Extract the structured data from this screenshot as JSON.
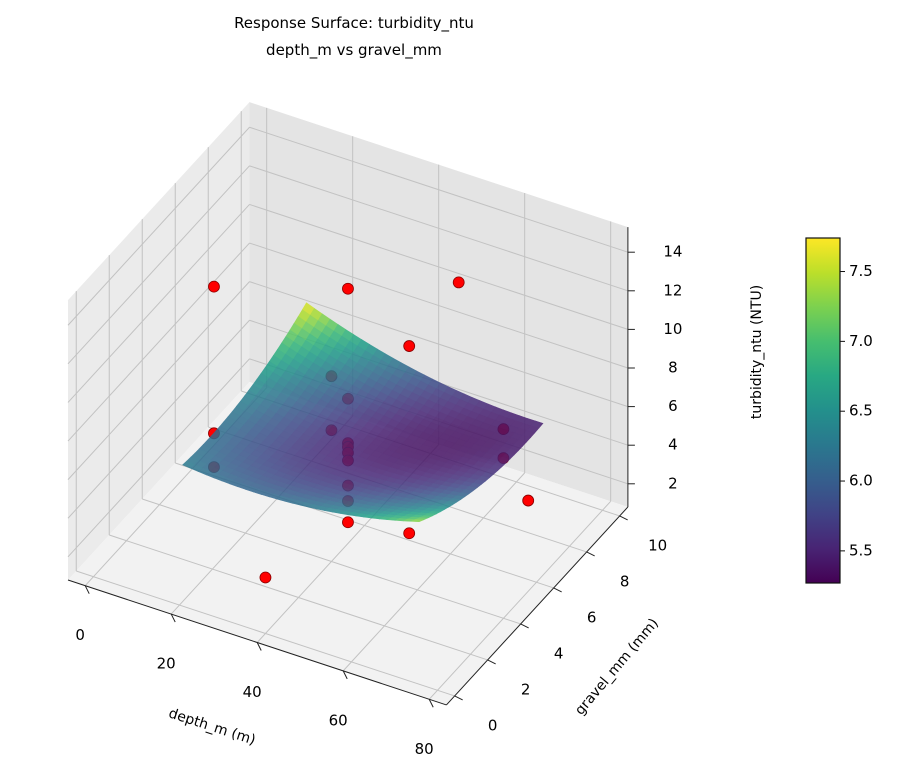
{
  "chart_data": {
    "type": "surface3d",
    "title": "Response Surface: turbidity_ntu",
    "subtitle": "depth_m vs gravel_mm",
    "xlabel": "depth_m (m)",
    "ylabel": "gravel_mm (mm)",
    "zlabel": "turbidity_ntu (NTU)",
    "colorbar_label": "turbidity_ntu (NTU)",
    "colormap": "viridis",
    "xlim": [
      -4,
      84
    ],
    "ylim": [
      -0.5,
      10.5
    ],
    "zlim": [
      0.8,
      15.3
    ],
    "xticks": [
      0,
      20,
      40,
      60,
      80
    ],
    "yticks": [
      0,
      2,
      4,
      6,
      8,
      10
    ],
    "zticks": [
      2,
      4,
      6,
      8,
      10,
      12,
      14
    ],
    "colorbar_range": [
      5.27,
      7.74
    ],
    "colorbar_ticks": [
      "5.5",
      "6.0",
      "6.5",
      "7.0",
      "7.5"
    ],
    "surface_range": {
      "x": [
        15,
        70
      ],
      "y": [
        1.5,
        9
      ]
    },
    "surface_model": "quadratic fit",
    "points_color": "#ff0000",
    "points": [
      {
        "x": 40,
        "y": 5,
        "z": 14.0
      },
      {
        "x": 40,
        "y": 5,
        "z": 8.3
      },
      {
        "x": 40,
        "y": 5,
        "z": 6.0
      },
      {
        "x": 40,
        "y": 5,
        "z": 5.8
      },
      {
        "x": 40,
        "y": 5,
        "z": 5.5
      },
      {
        "x": 40,
        "y": 5,
        "z": 5.1
      },
      {
        "x": 40,
        "y": 5,
        "z": 3.8
      },
      {
        "x": 40,
        "y": 5,
        "z": 3.0
      },
      {
        "x": 40,
        "y": 5,
        "z": 1.9
      },
      {
        "x": 40,
        "y": 0,
        "z": 3.7
      },
      {
        "x": 60,
        "y": 3.5,
        "z": 4.2
      },
      {
        "x": 60,
        "y": 3.5,
        "z": 13.9
      },
      {
        "x": 40,
        "y": 4,
        "z": 10.4
      },
      {
        "x": 40,
        "y": 4,
        "z": 7.6
      },
      {
        "x": 5,
        "y": 6,
        "z": 10.6
      },
      {
        "x": 5,
        "y": 6,
        "z": 3.0
      },
      {
        "x": 5,
        "y": 6,
        "z": 1.25
      },
      {
        "x": 60,
        "y": 6.5,
        "z": 14.4
      },
      {
        "x": 80,
        "y": 4,
        "z": 10.6
      },
      {
        "x": 80,
        "y": 4,
        "z": 9.1
      },
      {
        "x": 80,
        "y": 5.5,
        "z": 5.5
      }
    ]
  }
}
